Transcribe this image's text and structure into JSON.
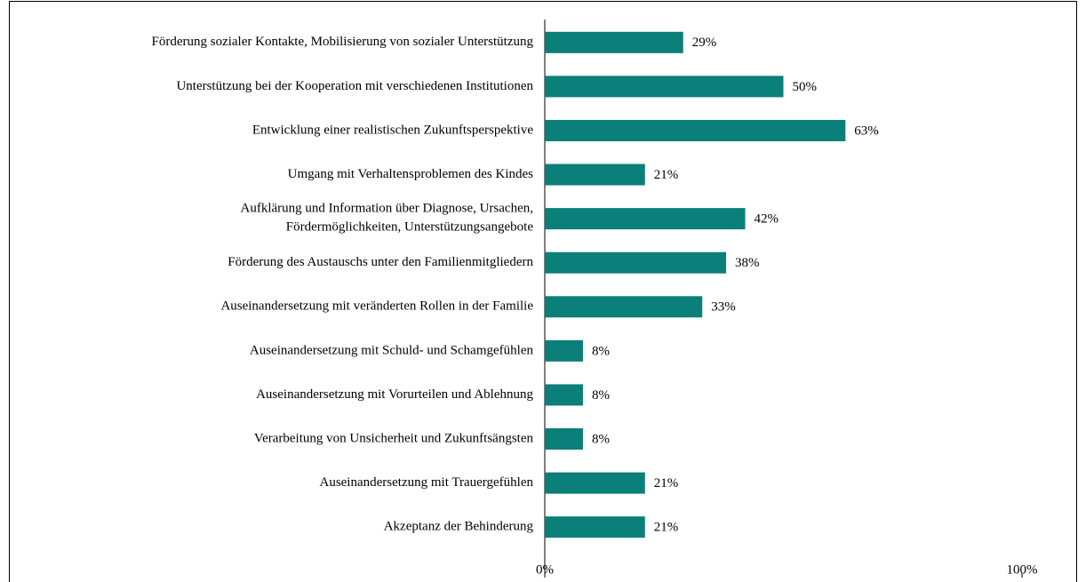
{
  "chart_data": {
    "type": "hbar",
    "categories": [
      "Förderung sozialer Kontakte, Mobilisierung von sozialer Unterstützung",
      "Unterstützung bei der Kooperation mit verschiedenen Institutionen",
      "Entwicklung einer realistischen Zukunftsperspektive",
      "Umgang mit Verhaltensproblemen des Kindes",
      "Aufklärung und Information über Diagnose, Ursachen,\nFördermöglichkeiten, Unterstützungsangebote",
      "Förderung des Austauschs unter den Familienmitgliedern",
      "Auseinandersetzung mit veränderten Rollen in der Familie",
      "Auseinandersetzung mit Schuld- und Schamgefühlen",
      "Auseinandersetzung mit Vorurteilen und Ablehnung",
      "Verarbeitung von Unsicherheit und Zukunftsängsten",
      "Auseinandersetzung mit Trauergefühlen",
      "Akzeptanz der Behinderung"
    ],
    "values": [
      29,
      50,
      63,
      21,
      42,
      38,
      33,
      8,
      8,
      8,
      21,
      21
    ],
    "value_labels": [
      "29%",
      "50%",
      "63%",
      "21%",
      "42%",
      "38%",
      "33%",
      "8%",
      "8%",
      "8%",
      "21%",
      "21%"
    ],
    "color": "#0b7f7a",
    "xlim": [
      0,
      100
    ],
    "xticks": [
      {
        "value": 0,
        "label": "0%"
      },
      {
        "value": 100,
        "label": "100%"
      }
    ]
  }
}
